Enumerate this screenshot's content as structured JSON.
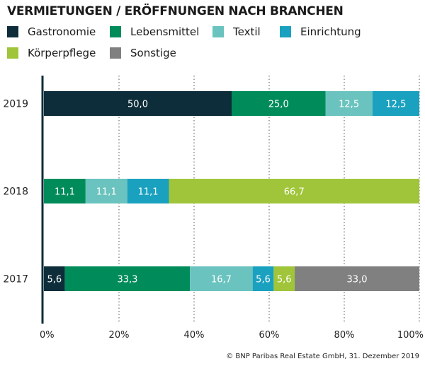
{
  "chart_data": {
    "type": "bar",
    "orientation": "horizontal",
    "stacked": true,
    "title": "VERMIETUNGEN / ERÖFFNUNGEN NACH BRANCHEN",
    "categories": [
      "2019",
      "2018",
      "2017"
    ],
    "series": [
      {
        "name": "Gastronomie",
        "color": "#0d2d3a",
        "values": [
          50.0,
          null,
          5.6
        ]
      },
      {
        "name": "Lebensmittel",
        "color": "#008c5a",
        "values": [
          25.0,
          11.1,
          33.3
        ]
      },
      {
        "name": "Textil",
        "color": "#6ac3be",
        "values": [
          12.5,
          11.1,
          16.7
        ]
      },
      {
        "name": "Einrichtung",
        "color": "#1ba1c0",
        "values": [
          12.5,
          11.1,
          5.6
        ]
      },
      {
        "name": "Körperpflege",
        "color": "#a0c53a",
        "values": [
          null,
          66.7,
          5.6
        ]
      },
      {
        "name": "Sonstige",
        "color": "#808080",
        "values": [
          null,
          null,
          33.0
        ]
      }
    ],
    "data_labels": [
      [
        "50,0",
        "25,0",
        "12,5",
        "12,5",
        null,
        null
      ],
      [
        null,
        "11,1",
        "11,1",
        "11,1",
        "66,7",
        null
      ],
      [
        "5,6",
        "33,3",
        "16,7",
        "5,6",
        "5,6",
        "33,0"
      ]
    ],
    "xlim": [
      0,
      100
    ],
    "xticks": [
      "0%",
      "20%",
      "40%",
      "60%",
      "80%",
      "100%"
    ],
    "grid": "vertical dotted",
    "legend_position": "top"
  },
  "source": "© BNP Paribas Real Estate GmbH, 31. Dezember 2019"
}
